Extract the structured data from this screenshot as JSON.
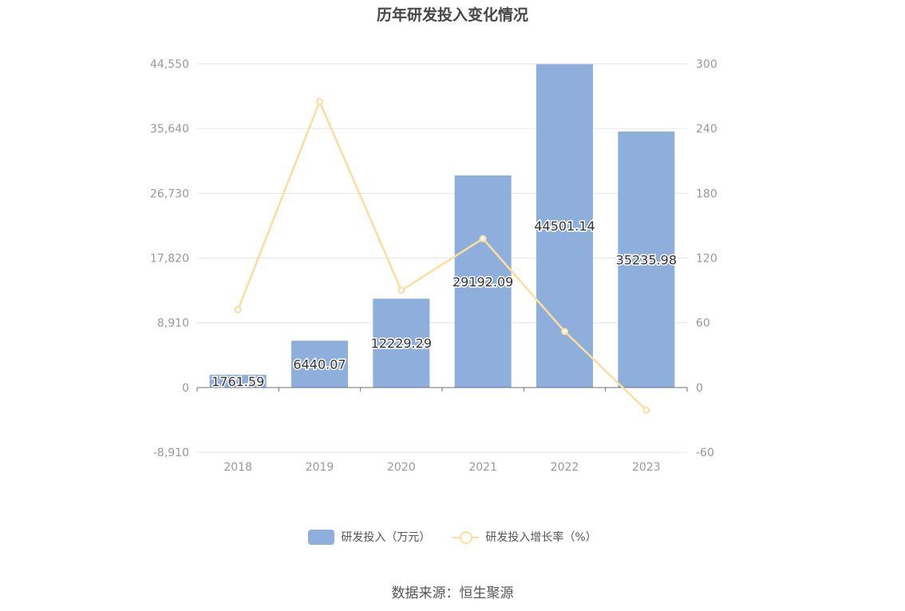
{
  "chart_data": {
    "type": "bar",
    "title": "历年研发投入变化情况",
    "categories": [
      "2018",
      "2019",
      "2020",
      "2021",
      "2022",
      "2023"
    ],
    "series": [
      {
        "name": "研发投入（万元）",
        "type": "bar",
        "axis": "left",
        "values": [
          1761.59,
          6440.07,
          12229.29,
          29192.09,
          44501.14,
          35235.98
        ],
        "labels": [
          "1761.59",
          "6440.07",
          "12229.29",
          "29192.09",
          "44501.14",
          "35235.98"
        ]
      },
      {
        "name": "研发投入增长率（%）",
        "type": "line",
        "axis": "right",
        "values": [
          72,
          265,
          90,
          138,
          52,
          -21
        ]
      }
    ],
    "y_left": {
      "ylim": [
        -8910,
        44550
      ],
      "ticks": [
        -8910,
        0,
        8910,
        17820,
        26730,
        35640,
        44550
      ],
      "tick_labels": [
        "-8,910",
        "0",
        "8,910",
        "17,820",
        "26,730",
        "35,640",
        "44,550"
      ]
    },
    "y_right": {
      "ylim": [
        -60,
        300
      ],
      "ticks": [
        -60,
        0,
        60,
        120,
        180,
        240,
        300
      ],
      "tick_labels": [
        "-60",
        "0",
        "60",
        "120",
        "180",
        "240",
        "300"
      ]
    },
    "grid": true,
    "legend_position": "bottom-center",
    "colors": {
      "bar": "#8eaedb",
      "line": "#fddd9e",
      "grid": "#e3e6f3",
      "axis": "#6e7079",
      "tick_text": "#999999"
    }
  },
  "footer": {
    "source": "数据来源：恒生聚源"
  }
}
